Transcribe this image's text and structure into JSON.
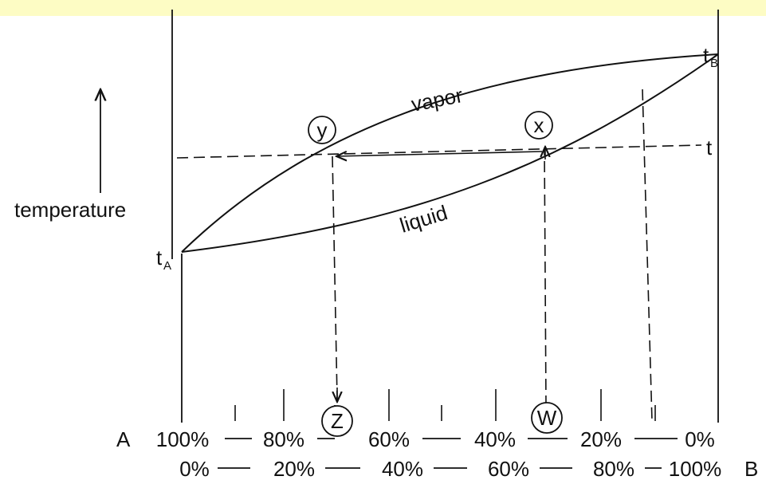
{
  "labels": {
    "temperature": "temperature",
    "vapor": "vapor",
    "liquid": "liquid",
    "t": "t",
    "t_a_main": "t",
    "t_a_sub": "A",
    "t_b_main": "t",
    "t_b_sub": "B",
    "y": "y",
    "x": "x",
    "z": "Z",
    "w": "W"
  },
  "axis_a": {
    "component": "A",
    "ticks": [
      "100%",
      "80%",
      "60%",
      "40%",
      "20%",
      "0%"
    ]
  },
  "axis_b": {
    "component": "B",
    "ticks": [
      "0%",
      "20%",
      "40%",
      "60%",
      "80%",
      "100%"
    ]
  },
  "colors": {
    "top_band": "#fdfcc4",
    "ink": "#111111"
  }
}
